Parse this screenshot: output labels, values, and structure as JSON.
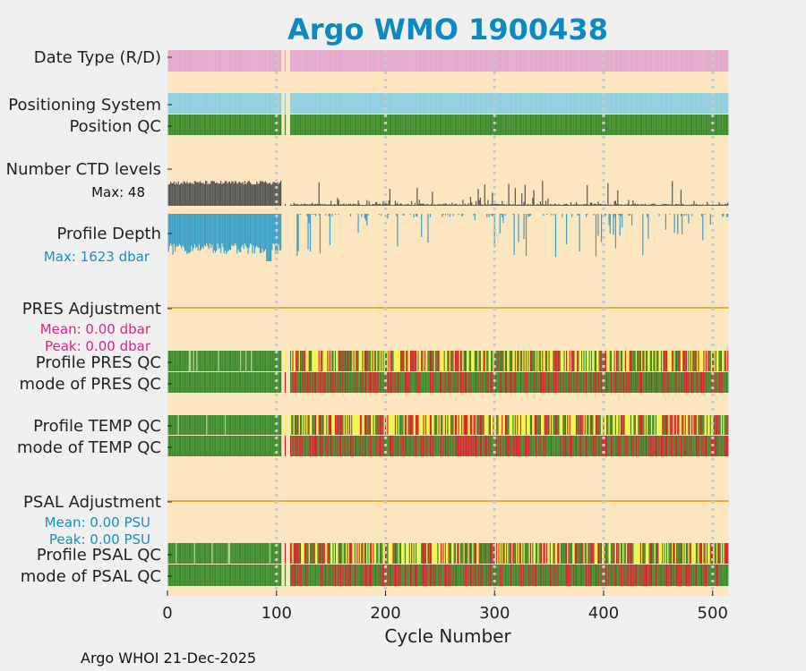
{
  "title": "Argo WMO 1900438",
  "footer": "Argo WHOI 21-Dec-2025",
  "colors": {
    "title": "#0a8abf",
    "background": "#f0f0f0",
    "panel": "#fce6c0",
    "grid": "#c8c8c8",
    "adjustment_line": "#f2a93b",
    "date_type": "#e3a8cf",
    "positioning": "#8ccfe3",
    "qc_good": "#3a8a2a",
    "qc_probably_good": "#a9d48a",
    "qc_probably_bad": "#f5f54a",
    "qc_bad": "#d6202a",
    "ctd_bar": "#555555",
    "depth_bar": "#3aa0c8",
    "pres_text": "#e0208a",
    "psal_text": "#1a8fc0"
  },
  "chart_data": {
    "type": "bar",
    "title": "Argo WMO 1900438",
    "xlabel": "Cycle Number",
    "xlim": [
      0,
      515
    ],
    "xticks": [
      0,
      100,
      200,
      300,
      400,
      500
    ],
    "grid_x": [
      100,
      200,
      300,
      400,
      500
    ],
    "cycles": {
      "first": 1,
      "last": 514,
      "gap_start": 104,
      "gap_end": 113,
      "missing": [
        108
      ]
    },
    "rows": [
      {
        "id": "date-type",
        "label": "Date Type (R/D)"
      },
      {
        "id": "positioning-system",
        "label": "Positioning System"
      },
      {
        "id": "position-qc",
        "label": "Position QC"
      },
      {
        "id": "number-ctd-levels",
        "label": "Number CTD levels",
        "annotation": "Max: 48",
        "max": 48
      },
      {
        "id": "profile-depth",
        "label": "Profile Depth",
        "annotation": "Max: 1623 dbar",
        "max": 1623
      },
      {
        "id": "pres-adjustment",
        "label": "PRES Adjustment",
        "mean": "Mean: 0.00 dbar",
        "peak": "Peak: 0.00 dbar"
      },
      {
        "id": "profile-pres-qc",
        "label": "Profile PRES QC"
      },
      {
        "id": "mode-pres-qc",
        "label": "mode of PRES QC"
      },
      {
        "id": "profile-temp-qc",
        "label": "Profile TEMP QC"
      },
      {
        "id": "mode-temp-qc",
        "label": "mode of TEMP QC"
      },
      {
        "id": "psal-adjustment",
        "label": "PSAL Adjustment",
        "mean": "Mean: 0.00 PSU",
        "peak": "Peak: 0.00 PSU"
      },
      {
        "id": "profile-psal-qc",
        "label": "Profile PSAL QC"
      },
      {
        "id": "mode-psal-qc",
        "label": "mode of PSAL QC"
      }
    ]
  }
}
